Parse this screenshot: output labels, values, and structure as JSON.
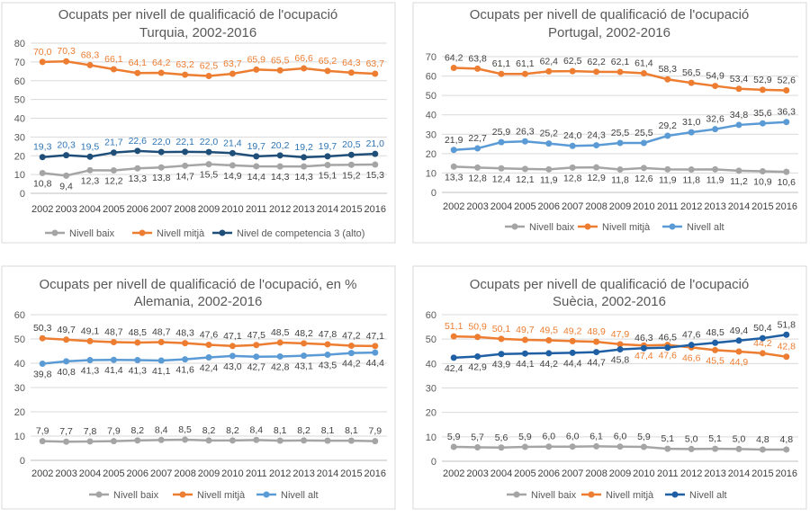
{
  "colors": {
    "baix": "#a5a5a5",
    "mitja": "#ed7d31",
    "alt_dark": "#2e75b6",
    "alt_light": "#5b9bd5",
    "axis_text": "#595959",
    "grid": "#d9d9d9",
    "frame": "#d9d9d9",
    "title": "#595959"
  },
  "chart_data": [
    {
      "type": "line",
      "title": "Ocupats per nivell de qualificació de l'ocupació",
      "subtitle": "Turquia, 2002-2016",
      "xlabel": "",
      "ylabel": "",
      "categories": [
        "2002",
        "2003",
        "2004",
        "2005",
        "2006",
        "2007",
        "2008",
        "2009",
        "2010",
        "2011",
        "2012",
        "2013",
        "2014",
        "2015",
        "2016"
      ],
      "ylim": [
        0,
        80
      ],
      "yticks": [
        0,
        10,
        20,
        30,
        40,
        50,
        60,
        70,
        80
      ],
      "grid": true,
      "legend": "bottom",
      "series": [
        {
          "name": "Nivell  baix",
          "color": "#a5a5a5",
          "label_color": "#404040",
          "label_pos": "below",
          "values": [
            10.8,
            9.4,
            12.3,
            12.2,
            13.3,
            13.8,
            14.7,
            15.5,
            14.9,
            14.4,
            14.3,
            14.3,
            15.1,
            15.2,
            15.3
          ],
          "labels": [
            "10,8",
            "9,4",
            "12,3",
            "12,2",
            "13,3",
            "13,8",
            "14,7",
            "15,5",
            "14,9",
            "14,4",
            "14,3",
            "14,3",
            "15,1",
            "15,2",
            "15,3"
          ]
        },
        {
          "name": "Nivell  mitjà",
          "color": "#ed7d31",
          "label_color": "#ed7d31",
          "label_pos": "above",
          "values": [
            70.0,
            70.3,
            68.3,
            66.1,
            64.1,
            64.2,
            63.2,
            62.5,
            63.7,
            65.9,
            65.5,
            66.6,
            65.2,
            64.3,
            63.7
          ],
          "labels": [
            "70,0",
            "70,3",
            "68,3",
            "66,1",
            "64,1",
            "64,2",
            "63,2",
            "62,5",
            "63,7",
            "65,9",
            "65,5",
            "66,6",
            "65,2",
            "64,3",
            "63,7"
          ]
        },
        {
          "name": "Nivel de competencia 3 (alto)",
          "color": "#1f4e79",
          "label_color": "#2e75b6",
          "label_pos": "above",
          "values": [
            19.3,
            20.3,
            19.5,
            21.7,
            22.6,
            22.0,
            22.1,
            22.0,
            21.4,
            19.7,
            20.2,
            19.2,
            19.7,
            20.5,
            21.0
          ],
          "labels": [
            "19,3",
            "20,3",
            "19,5",
            "21,7",
            "22,6",
            "22,0",
            "22,1",
            "22,0",
            "21,4",
            "19,7",
            "20,2",
            "19,2",
            "19,7",
            "20,5",
            "21,0"
          ]
        }
      ]
    },
    {
      "type": "line",
      "title": "Ocupats per nivell de qualificació de l'ocupació",
      "subtitle": "Portugal, 2002-2016",
      "xlabel": "",
      "ylabel": "",
      "categories": [
        "2002",
        "2003",
        "2004",
        "2005",
        "2006",
        "2007",
        "2008",
        "2009",
        "2010",
        "2011",
        "2012",
        "2013",
        "2014",
        "2015",
        "2016"
      ],
      "ylim": [
        0,
        70
      ],
      "yticks": [
        0,
        10,
        20,
        30,
        40,
        50,
        60,
        70
      ],
      "grid": true,
      "legend": "bottom",
      "series": [
        {
          "name": "Nivell  baix",
          "color": "#a5a5a5",
          "label_color": "#404040",
          "label_pos": "below",
          "values": [
            13.3,
            12.8,
            12.4,
            12.1,
            11.9,
            12.8,
            12.9,
            11.8,
            12.6,
            11.9,
            11.8,
            11.9,
            11.2,
            10.9,
            10.6
          ],
          "labels": [
            "13,3",
            "12,8",
            "12,4",
            "12,1",
            "11,9",
            "12,8",
            "12,9",
            "11,8",
            "12,6",
            "11,9",
            "11,8",
            "11,9",
            "11,2",
            "10,9",
            "10,6"
          ]
        },
        {
          "name": "Nivell  mitjà",
          "color": "#ed7d31",
          "label_color": "#404040",
          "label_pos": "above",
          "values": [
            64.2,
            63.8,
            61.1,
            61.1,
            62.4,
            62.5,
            62.2,
            62.1,
            61.4,
            58.3,
            56.5,
            54.9,
            53.4,
            52.9,
            52.6
          ],
          "labels": [
            "64,2",
            "63,8",
            "61,1",
            "61,1",
            "62,4",
            "62,5",
            "62,2",
            "62,1",
            "61,4",
            "58,3",
            "56,5",
            "54,9",
            "53,4",
            "52,9",
            "52,6"
          ]
        },
        {
          "name": "Nivell  alt",
          "color": "#5b9bd5",
          "label_color": "#404040",
          "label_pos": "above",
          "values": [
            21.9,
            22.7,
            25.9,
            26.3,
            25.2,
            24.0,
            24.3,
            25.5,
            25.5,
            29.2,
            31.0,
            32.6,
            34.8,
            35.6,
            36.3
          ],
          "labels": [
            "21,9",
            "22,7",
            "25,9",
            "26,3",
            "25,2",
            "24,0",
            "24,3",
            "25,5",
            "25,5",
            "29,2",
            "31,0",
            "32,6",
            "34,8",
            "35,6",
            "36,3"
          ]
        }
      ]
    },
    {
      "type": "line",
      "title": "Ocupats per nivell de qualificació de l'ocupació, en %",
      "subtitle": "Alemania, 2002-2016",
      "xlabel": "",
      "ylabel": "",
      "categories": [
        "2002",
        "2003",
        "2004",
        "2005",
        "2006",
        "2007",
        "2008",
        "2009",
        "2010",
        "2011",
        "2012",
        "2013",
        "2014",
        "2015",
        "2016"
      ],
      "ylim": [
        0,
        60
      ],
      "yticks": [
        0,
        10,
        20,
        30,
        40,
        50,
        60
      ],
      "grid": true,
      "legend": "bottom",
      "series": [
        {
          "name": "Nivell  baix",
          "color": "#a5a5a5",
          "label_color": "#404040",
          "label_pos": "above",
          "values": [
            7.9,
            7.7,
            7.8,
            7.9,
            8.2,
            8.4,
            8.5,
            8.2,
            8.2,
            8.4,
            8.1,
            8.2,
            8.1,
            8.1,
            7.9
          ],
          "labels": [
            "7,9",
            "7,7",
            "7,8",
            "7,9",
            "8,2",
            "8,4",
            "8,5",
            "8,2",
            "8,2",
            "8,4",
            "8,1",
            "8,2",
            "8,1",
            "8,1",
            "7,9"
          ]
        },
        {
          "name": "Nivell  mitjà",
          "color": "#ed7d31",
          "label_color": "#404040",
          "label_pos": "above",
          "values": [
            50.3,
            49.7,
            49.1,
            48.7,
            48.5,
            48.7,
            48.3,
            47.6,
            47.1,
            47.5,
            48.5,
            48.2,
            47.8,
            47.2,
            47.1
          ],
          "labels": [
            "50,3",
            "49,7",
            "49,1",
            "48,7",
            "48,5",
            "48,7",
            "48,3",
            "47,6",
            "47,1",
            "47,5",
            "48,5",
            "48,2",
            "47,8",
            "47,2",
            "47,1"
          ]
        },
        {
          "name": "Nivell  alt",
          "color": "#5b9bd5",
          "label_color": "#404040",
          "label_pos": "below",
          "values": [
            39.8,
            40.8,
            41.3,
            41.4,
            41.3,
            41.1,
            41.6,
            42.4,
            43.0,
            42.7,
            42.8,
            43.1,
            43.5,
            44.2,
            44.4
          ],
          "labels": [
            "39,8",
            "40,8",
            "41,3",
            "41,4",
            "41,3",
            "41,1",
            "41,6",
            "42,4",
            "43,0",
            "42,7",
            "42,8",
            "43,1",
            "43,5",
            "44,2",
            "44,4"
          ]
        }
      ]
    },
    {
      "type": "line",
      "title": "Ocupats per nivell de qualificació de l'ocupació",
      "subtitle": "Suècia, 2002-2016",
      "xlabel": "",
      "ylabel": "",
      "categories": [
        "2002",
        "2003",
        "2004",
        "2005",
        "2006",
        "2007",
        "2008",
        "2009",
        "2010",
        "2011",
        "2012",
        "2013",
        "2014",
        "2015",
        "2016"
      ],
      "ylim": [
        0,
        60
      ],
      "yticks": [
        0,
        10,
        20,
        30,
        40,
        50,
        60
      ],
      "grid": true,
      "legend": "bottom",
      "series": [
        {
          "name": "Nivell  baix",
          "color": "#a5a5a5",
          "label_color": "#404040",
          "label_pos": "above",
          "values": [
            5.9,
            5.7,
            5.6,
            5.9,
            6.0,
            6.0,
            6.1,
            6.0,
            5.9,
            5.1,
            5.0,
            5.1,
            5.0,
            4.8,
            4.8
          ],
          "labels": [
            "5,9",
            "5,7",
            "5,6",
            "5,9",
            "6,0",
            "6,0",
            "6,1",
            "6,0",
            "5,9",
            "5,1",
            "5,0",
            "5,1",
            "5,0",
            "4,8",
            "4,8"
          ]
        },
        {
          "name": "Nivell  mitjà",
          "color": "#ed7d31",
          "label_color": "#ed7d31",
          "label_pos_list": [
            "above",
            "above",
            "above",
            "above",
            "above",
            "above",
            "above",
            "above",
            "below",
            "below",
            "below",
            "below",
            "below",
            "above",
            "above"
          ],
          "values": [
            51.1,
            50.9,
            50.1,
            49.7,
            49.5,
            49.2,
            48.9,
            47.9,
            47.4,
            47.6,
            46.6,
            45.5,
            44.9,
            44.2,
            42.8
          ],
          "labels": [
            "51,1",
            "50,9",
            "50,1",
            "49,7",
            "49,5",
            "49,2",
            "48,9",
            "47,9",
            "47,4",
            "47,6",
            "46,6",
            "45,5",
            "44,9",
            "44,2",
            "42,8"
          ]
        },
        {
          "name": "Nivell  alt",
          "color": "#1f5fa3",
          "label_color": "#404040",
          "label_pos_list": [
            "below",
            "below",
            "below",
            "below",
            "below",
            "below",
            "below",
            "below",
            "above",
            "above",
            "above",
            "above",
            "above",
            "above",
            "above"
          ],
          "values": [
            42.4,
            42.9,
            43.9,
            44.1,
            44.2,
            44.4,
            44.7,
            45.8,
            46.3,
            46.5,
            47.6,
            48.5,
            49.4,
            50.4,
            51.8
          ],
          "labels": [
            "42,4",
            "42,9",
            "43,9",
            "44,1",
            "44,2",
            "44,4",
            "44,7",
            "45,8",
            "46,3",
            "46,5",
            "47,6",
            "48,5",
            "49,4",
            "50,4",
            "51,8"
          ]
        }
      ]
    }
  ]
}
